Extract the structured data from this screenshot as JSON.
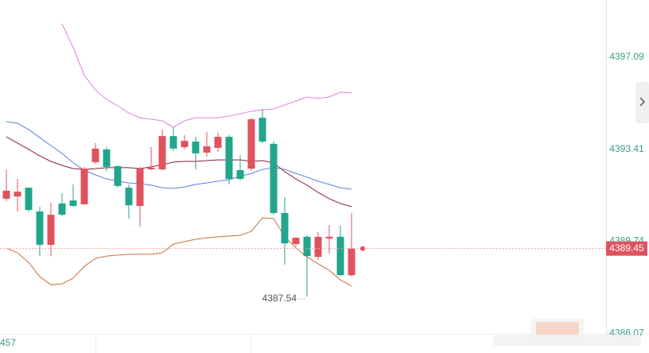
{
  "chart_data": {
    "type": "candlestick",
    "candles": {
      "open": [
        4391.44,
        4391.53,
        4391.88,
        4390.93,
        4389.6,
        4391.25,
        4391.37,
        4391.22,
        4392.9,
        4393.41,
        4392.74,
        4391.88,
        4391.15,
        4392.61,
        4392.61,
        4393.94,
        4393.5,
        4393.72,
        4393.28,
        4393.47,
        4393.91,
        4392.58,
        4392.64,
        4394.67,
        4393.63,
        4390.87,
        4389.63,
        4389.92,
        4389.12,
        4389.85,
        4389.92,
        4388.39
      ],
      "high": [
        4392.61,
        4392.23,
        4391.88,
        4391.12,
        4391.28,
        4391.66,
        4392.01,
        4392.71,
        4393.66,
        4393.5,
        4392.77,
        4392.01,
        4392.71,
        4393.5,
        4394.2,
        4394.29,
        4393.98,
        4393.91,
        4394.1,
        4394.07,
        4393.98,
        4393.18,
        4394.67,
        4395.02,
        4393.72,
        4391.5,
        4389.92,
        4389.98,
        4390.11,
        4390.39,
        4390.36,
        4390.87
      ],
      "low": [
        4391.34,
        4390.93,
        4390.93,
        4389.15,
        4389.15,
        4390.74,
        4391.12,
        4391.18,
        4392.83,
        4392.55,
        4391.88,
        4390.65,
        4390.33,
        4392.58,
        4392.58,
        4393.34,
        4393.41,
        4392.61,
        4393.12,
        4393.31,
        4392.01,
        4392.17,
        4392.55,
        4393.66,
        4390.8,
        4388.81,
        4389.53,
        4387.54,
        4389.0,
        4389.25,
        4388.36,
        4388.33
      ],
      "close": [
        4391.76,
        4391.72,
        4390.99,
        4389.6,
        4390.8,
        4390.8,
        4391.15,
        4392.64,
        4393.44,
        4392.71,
        4391.95,
        4391.18,
        4392.64,
        4392.68,
        4393.94,
        4393.44,
        4393.75,
        4393.25,
        4393.53,
        4393.91,
        4392.23,
        4392.23,
        4394.61,
        4393.72,
        4390.87,
        4389.66,
        4389.88,
        4389.15,
        4389.92,
        4389.92,
        4388.39,
        4389.45
      ]
    },
    "up_color": "#e0525e",
    "down_color": "#22a58c",
    "lines": [
      {
        "color": "#e07fe0",
        "values": [
          null,
          null,
          null,
          null,
          null,
          4398.42,
          4397.47,
          4396.36,
          4395.78,
          4395.4,
          4395.15,
          4394.86,
          4394.67,
          4394.61,
          4394.55,
          4394.29,
          4394.55,
          4394.67,
          4394.67,
          4394.67,
          4394.74,
          4394.83,
          4394.93,
          4394.99,
          4395.02,
          4395.18,
          4395.34,
          4395.5,
          4395.44,
          4395.5,
          4395.69,
          4395.66
        ]
      },
      {
        "color": "#5b7fe0",
        "values": [
          4394.52,
          4394.45,
          4394.2,
          4393.88,
          4393.56,
          4393.25,
          4392.87,
          4392.58,
          4392.39,
          4392.23,
          4392.14,
          4392.07,
          4392.04,
          4391.98,
          4391.88,
          4391.85,
          4391.91,
          4392.01,
          4392.07,
          4392.14,
          4392.2,
          4392.33,
          4392.45,
          4392.61,
          4392.68,
          4392.61,
          4392.45,
          4392.3,
          4392.14,
          4392.01,
          4391.88,
          4391.82
        ]
      },
      {
        "color": "#8b1f35",
        "values": [
          4393.91,
          4393.66,
          4393.41,
          4393.15,
          4392.93,
          4392.77,
          4392.64,
          4392.61,
          4392.64,
          4392.68,
          4392.68,
          4392.68,
          4392.64,
          4392.71,
          4392.8,
          4392.9,
          4392.93,
          4392.93,
          4392.96,
          4392.99,
          4392.99,
          4392.99,
          4392.93,
          4392.96,
          4392.87,
          4392.52,
          4392.23,
          4391.98,
          4391.69,
          4391.44,
          4391.25,
          4391.12
        ]
      },
      {
        "color": "#c8703c",
        "values": [
          4389.47,
          4389.28,
          4388.9,
          4388.33,
          4388.01,
          4388.04,
          4388.27,
          4388.74,
          4389.06,
          4389.15,
          4389.19,
          4389.22,
          4389.22,
          4389.22,
          4389.28,
          4389.63,
          4389.73,
          4389.82,
          4389.88,
          4389.92,
          4389.95,
          4389.98,
          4390.14,
          4390.68,
          4390.65,
          4389.92,
          4389.47,
          4389.12,
          4388.84,
          4388.58,
          4388.2,
          4387.95
        ]
      }
    ],
    "ylim": [
      4386.07,
      4399.37
    ],
    "yticks": [
      4397.09,
      4393.41,
      4389.74,
      4386.07
    ],
    "footer_text": "457"
  }
}
